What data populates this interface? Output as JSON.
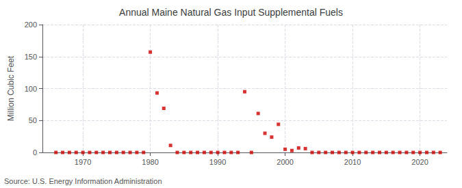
{
  "chart_data": {
    "type": "scatter",
    "title": "Annual Maine Natural Gas Input Supplemental Fuels",
    "ylabel": "Million Cubic Feet",
    "annotation": "Source: U.S. Energy Information Administration",
    "x": [
      1966,
      1967,
      1968,
      1969,
      1970,
      1971,
      1972,
      1973,
      1974,
      1975,
      1976,
      1977,
      1978,
      1979,
      1980,
      1981,
      1982,
      1983,
      1984,
      1985,
      1986,
      1987,
      1988,
      1989,
      1990,
      1991,
      1992,
      1993,
      1994,
      1995,
      1996,
      1997,
      1998,
      1999,
      2000,
      2001,
      2002,
      2003,
      2004,
      2005,
      2006,
      2007,
      2008,
      2009,
      2010,
      2011,
      2012,
      2013,
      2014,
      2015,
      2016,
      2017,
      2018,
      2019,
      2020,
      2021,
      2022,
      2023
    ],
    "values": [
      0,
      0,
      0,
      0,
      0,
      0,
      0,
      0,
      0,
      0,
      0,
      0,
      0,
      0,
      157,
      93,
      69,
      11,
      0,
      0,
      0,
      0,
      0,
      0,
      0,
      0,
      0,
      0,
      95,
      0,
      61,
      30,
      24,
      44,
      5,
      3,
      7,
      6,
      0,
      0,
      0,
      0,
      0,
      0,
      0,
      0,
      0,
      0,
      0,
      0,
      0,
      0,
      0,
      0,
      0,
      0,
      0,
      0
    ],
    "color": "#cc0000",
    "marker": "square",
    "xlim": [
      1964,
      2024
    ],
    "xticks": [
      1970,
      1980,
      1990,
      2000,
      2010,
      2020
    ],
    "ylim": [
      0,
      200
    ],
    "yticks": [
      0,
      50,
      100,
      150,
      200
    ],
    "grid": true
  }
}
